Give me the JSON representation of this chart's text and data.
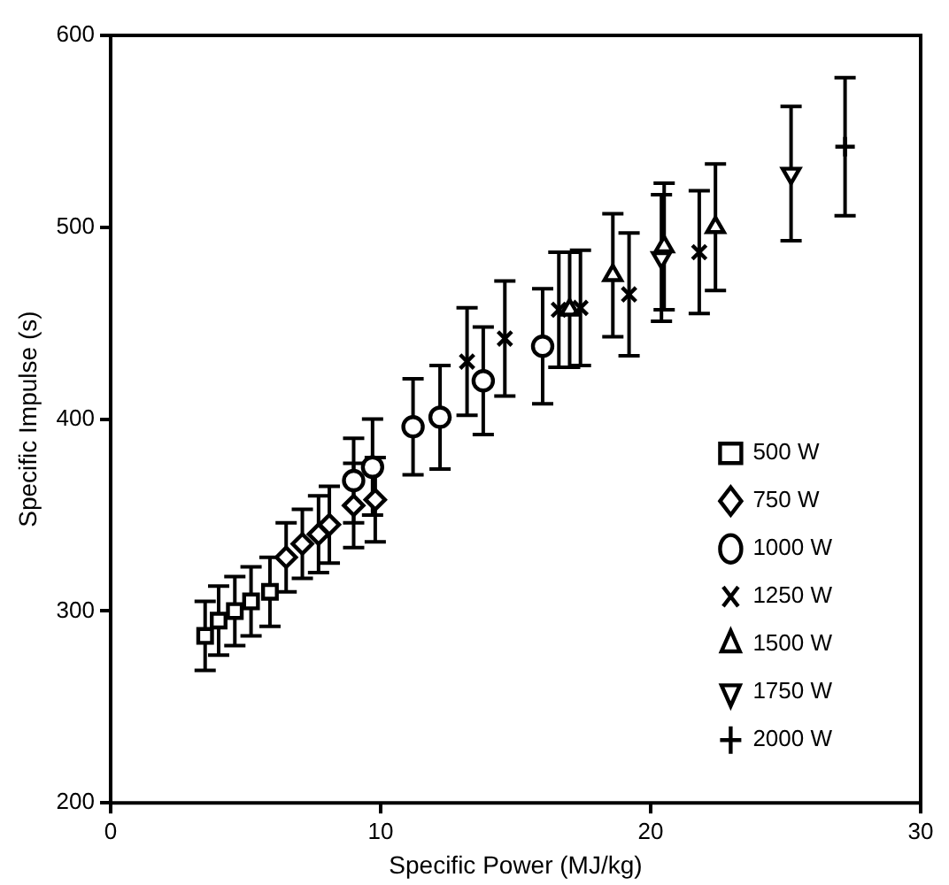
{
  "chart_data": {
    "type": "scatter",
    "xlabel": "Specific Power (MJ/kg)",
    "ylabel": "Specific Impulse (s)",
    "xlim": [
      0,
      30
    ],
    "xticks": [
      0,
      10,
      20,
      30
    ],
    "ylim": [
      200,
      600
    ],
    "yticks": [
      200,
      300,
      400,
      500,
      600
    ],
    "grid": false,
    "legend": "bottom right",
    "series": [
      {
        "name": "500 W",
        "color": "#000000",
        "marker": "square",
        "x": [
          3.5,
          4.0,
          4.6,
          5.2,
          5.9
        ],
        "values": [
          287,
          295,
          300,
          305,
          310
        ],
        "errors": [
          18,
          18,
          18,
          18,
          18
        ]
      },
      {
        "name": "750 W",
        "color": "#000000",
        "marker": "diamond",
        "x": [
          6.5,
          7.1,
          7.7,
          8.1,
          9.0,
          9.8
        ],
        "values": [
          328,
          335,
          340,
          345,
          355,
          358
        ],
        "errors": [
          18,
          18,
          20,
          20,
          22,
          22
        ]
      },
      {
        "name": "1000 W",
        "color": "#000000",
        "marker": "circle",
        "x": [
          9.0,
          9.7,
          11.2,
          12.2,
          13.8,
          16.0
        ],
        "values": [
          368,
          375,
          396,
          401,
          420,
          438
        ],
        "errors": [
          22,
          25,
          25,
          27,
          28,
          30
        ]
      },
      {
        "name": "1250 W",
        "color": "#000000",
        "marker": "cross",
        "x": [
          13.2,
          14.6,
          16.6,
          17.4,
          19.2,
          21.8
        ],
        "values": [
          430,
          442,
          457,
          458,
          465,
          487
        ],
        "errors": [
          28,
          30,
          30,
          30,
          32,
          32
        ]
      },
      {
        "name": "1500 W",
        "color": "#000000",
        "marker": "triangle",
        "x": [
          17.0,
          18.6,
          20.5,
          22.4
        ],
        "values": [
          457,
          475,
          490,
          500
        ],
        "errors": [
          30,
          32,
          33,
          33
        ]
      },
      {
        "name": "1750 W",
        "color": "#000000",
        "marker": "triangle-down",
        "x": [
          20.4,
          25.2
        ],
        "values": [
          484,
          528
        ],
        "errors": [
          33,
          35
        ]
      },
      {
        "name": "2000 W",
        "color": "#000000",
        "marker": "plus",
        "x": [
          27.2
        ],
        "values": [
          542
        ],
        "errors": [
          36
        ]
      }
    ]
  }
}
